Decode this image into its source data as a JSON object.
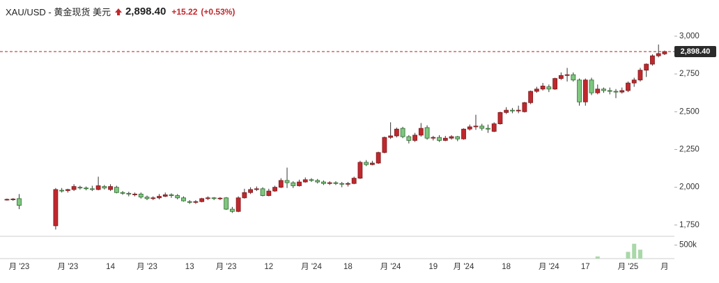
{
  "header": {
    "symbol": "XAU/USD - 黄金现货 美元",
    "change": "+15.22",
    "change_pct": "(+0.53%)"
  },
  "chart_data": {
    "type": "candlestick",
    "last_price": {
      "value": 2898.4,
      "label": "2,898.40"
    },
    "categories": [
      null,
      null,
      "月 '23",
      null,
      null,
      null,
      null,
      null,
      null,
      null,
      "月 '23",
      null,
      null,
      null,
      null,
      null,
      null,
      "14",
      null,
      null,
      null,
      null,
      null,
      "月 '23",
      null,
      null,
      null,
      null,
      null,
      null,
      "13",
      null,
      null,
      null,
      null,
      null,
      "月 '23",
      null,
      null,
      null,
      null,
      null,
      null,
      "12",
      null,
      null,
      null,
      null,
      null,
      null,
      "月 '24",
      null,
      null,
      null,
      null,
      null,
      "18",
      null,
      null,
      null,
      null,
      null,
      null,
      "月 '24",
      null,
      null,
      null,
      null,
      null,
      null,
      "19",
      null,
      null,
      null,
      null,
      "月 '24",
      null,
      null,
      null,
      null,
      null,
      null,
      "18",
      null,
      null,
      null,
      null,
      null,
      null,
      "月 '24",
      null,
      null,
      null,
      null,
      null,
      "17",
      null,
      null,
      null,
      null,
      null,
      null,
      "月 '25",
      null,
      null,
      null,
      null,
      null,
      "月"
    ],
    "open": [
      1918,
      1920,
      1925,
      null,
      null,
      null,
      null,
      null,
      1745,
      1980,
      1978,
      1985,
      2000,
      1995,
      1990,
      1985,
      2005,
      1985,
      2000,
      1965,
      1960,
      1955,
      1955,
      1935,
      1925,
      1930,
      1940,
      1950,
      1945,
      1930,
      1905,
      1900,
      1905,
      1925,
      1930,
      1925,
      1930,
      1855,
      1840,
      1930,
      1965,
      1985,
      1990,
      1945,
      1975,
      2000,
      2045,
      2030,
      2010,
      2035,
      2050,
      2045,
      2035,
      2025,
      2030,
      2025,
      2020,
      2025,
      2060,
      2165,
      2150,
      2160,
      2230,
      2330,
      2340,
      2390,
      2335,
      2310,
      2345,
      2395,
      2325,
      2330,
      2310,
      2325,
      2335,
      2320,
      2385,
      2400,
      2405,
      2390,
      2370,
      2420,
      2495,
      2510,
      2505,
      2500,
      2560,
      2635,
      2650,
      2665,
      2650,
      2720,
      2740,
      2745,
      2710,
      2565,
      2710,
      2625,
      2650,
      2640,
      2635,
      2630,
      2640,
      2690,
      2710,
      2775,
      2815,
      2870,
      2883
    ],
    "high": [
      1925,
      1928,
      1955,
      null,
      null,
      null,
      null,
      null,
      1995,
      1995,
      1990,
      2020,
      2010,
      2005,
      2010,
      2070,
      2015,
      2020,
      2010,
      1975,
      1970,
      1965,
      1965,
      1945,
      1940,
      1955,
      1965,
      1960,
      1955,
      1940,
      1915,
      1915,
      1930,
      1940,
      1935,
      1935,
      1935,
      1870,
      1940,
      1990,
      2000,
      2005,
      2000,
      1990,
      2010,
      2060,
      2130,
      2040,
      2050,
      2065,
      2060,
      2055,
      2045,
      2040,
      2040,
      2035,
      2035,
      2070,
      2175,
      2180,
      2175,
      2235,
      2335,
      2430,
      2395,
      2400,
      2345,
      2360,
      2425,
      2410,
      2340,
      2345,
      2340,
      2345,
      2340,
      2390,
      2415,
      2480,
      2420,
      2415,
      2430,
      2500,
      2530,
      2525,
      2540,
      2565,
      2640,
      2665,
      2690,
      2680,
      2725,
      2760,
      2790,
      2760,
      2720,
      2720,
      2725,
      2680,
      2660,
      2660,
      2650,
      2660,
      2700,
      2725,
      2790,
      2820,
      2880,
      2945,
      2905
    ],
    "low": [
      1912,
      1910,
      1855,
      null,
      null,
      null,
      null,
      null,
      1720,
      1965,
      1965,
      1975,
      1985,
      1980,
      1975,
      1980,
      1985,
      1975,
      1960,
      1950,
      1940,
      1940,
      1925,
      1915,
      1915,
      1920,
      1935,
      1930,
      1920,
      1905,
      1890,
      1890,
      1900,
      1915,
      1915,
      1915,
      1850,
      1830,
      1835,
      1925,
      1955,
      1975,
      1940,
      1940,
      1970,
      1995,
      1995,
      1995,
      2005,
      2030,
      2035,
      2025,
      2015,
      2015,
      2015,
      2000,
      2005,
      2020,
      2055,
      2140,
      2145,
      2155,
      2225,
      2320,
      2330,
      2325,
      2290,
      2300,
      2335,
      2315,
      2310,
      2300,
      2305,
      2315,
      2305,
      2315,
      2375,
      2380,
      2375,
      2360,
      2365,
      2415,
      2485,
      2490,
      2490,
      2495,
      2550,
      2625,
      2640,
      2630,
      2645,
      2710,
      2700,
      2700,
      2540,
      2540,
      2610,
      2615,
      2625,
      2615,
      2590,
      2620,
      2630,
      2665,
      2700,
      2730,
      2805,
      2860,
      2875
    ],
    "close": [
      1920,
      1922,
      1880,
      null,
      null,
      null,
      null,
      null,
      1985,
      1975,
      1985,
      2005,
      1995,
      1990,
      1985,
      2010,
      1995,
      2005,
      1965,
      1960,
      1955,
      1955,
      1935,
      1925,
      1930,
      1940,
      1950,
      1945,
      1930,
      1910,
      1900,
      1905,
      1925,
      1930,
      1925,
      1928,
      1855,
      1840,
      1930,
      1965,
      1985,
      1990,
      1945,
      1975,
      2000,
      2045,
      2030,
      2010,
      2035,
      2050,
      2045,
      2035,
      2025,
      2030,
      2025,
      2020,
      2025,
      2060,
      2165,
      2150,
      2160,
      2230,
      2330,
      2340,
      2385,
      2335,
      2310,
      2345,
      2390,
      2325,
      2330,
      2310,
      2325,
      2335,
      2320,
      2385,
      2400,
      2405,
      2390,
      2385,
      2420,
      2495,
      2510,
      2505,
      2510,
      2560,
      2635,
      2650,
      2670,
      2650,
      2720,
      2740,
      2745,
      2710,
      2565,
      2710,
      2625,
      2650,
      2640,
      2635,
      2630,
      2640,
      2690,
      2710,
      2775,
      2815,
      2870,
      2885,
      2898.4
    ],
    "volume": [
      null,
      null,
      null,
      null,
      null,
      null,
      null,
      null,
      null,
      null,
      null,
      null,
      null,
      null,
      null,
      null,
      null,
      null,
      null,
      null,
      null,
      null,
      null,
      null,
      null,
      null,
      null,
      null,
      null,
      null,
      null,
      null,
      null,
      null,
      null,
      null,
      null,
      null,
      null,
      null,
      null,
      null,
      null,
      null,
      null,
      null,
      null,
      null,
      null,
      null,
      null,
      null,
      null,
      null,
      null,
      null,
      null,
      null,
      null,
      null,
      null,
      null,
      null,
      null,
      null,
      null,
      null,
      null,
      null,
      null,
      null,
      null,
      null,
      null,
      null,
      null,
      null,
      null,
      null,
      null,
      null,
      null,
      null,
      null,
      null,
      null,
      null,
      null,
      null,
      null,
      null,
      null,
      null,
      null,
      null,
      null,
      null,
      80000,
      null,
      null,
      null,
      null,
      250000,
      550000,
      330000,
      null,
      null,
      null,
      null
    ],
    "up_color": "#c0282d",
    "down_color": "#7fc77f",
    "volume_color": "#a9d8a9",
    "ylim": [
      1680,
      3055
    ],
    "yticks": [
      {
        "value": 1750,
        "label": "1,750"
      },
      {
        "value": 2000,
        "label": "2,000"
      },
      {
        "value": 2250,
        "label": "2,250"
      },
      {
        "value": 2500,
        "label": "2,500"
      },
      {
        "value": 2750,
        "label": "2,750"
      },
      {
        "value": 3000,
        "label": "3,000"
      }
    ],
    "volume_ylim": [
      0,
      800000
    ],
    "volume_yticks": [
      {
        "value": 500000,
        "label": "500k"
      }
    ]
  }
}
